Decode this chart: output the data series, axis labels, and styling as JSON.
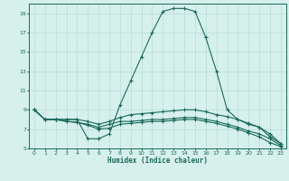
{
  "xlabel": "Humidex (Indice chaleur)",
  "bg_color": "#d6f0ec",
  "grid_color": "#b8ddd8",
  "line_color": "#1a6b5a",
  "xlim": [
    -0.5,
    23.5
  ],
  "ylim": [
    5,
    20
  ],
  "yticks": [
    5,
    7,
    9,
    11,
    13,
    15,
    17,
    19
  ],
  "xticks": [
    0,
    1,
    2,
    3,
    4,
    5,
    6,
    7,
    8,
    9,
    10,
    11,
    12,
    13,
    14,
    15,
    16,
    17,
    18,
    19,
    20,
    21,
    22,
    23
  ],
  "lines": [
    {
      "x": [
        0,
        1,
        2,
        3,
        4,
        5,
        6,
        7,
        8,
        9,
        10,
        11,
        12,
        13,
        14,
        15,
        16,
        17,
        18,
        19,
        20,
        21,
        22,
        23
      ],
      "y": [
        9,
        8,
        8,
        8,
        8,
        6,
        6,
        6.5,
        9.5,
        12,
        14.5,
        17,
        19.2,
        19.5,
        19.5,
        19.2,
        16.5,
        13,
        9,
        8.0,
        7.5,
        7.2,
        6.2,
        5.5
      ]
    },
    {
      "x": [
        0,
        1,
        2,
        3,
        4,
        5,
        6,
        7,
        8,
        9,
        10,
        11,
        12,
        13,
        14,
        15,
        16,
        17,
        18,
        19,
        20,
        21,
        22,
        23
      ],
      "y": [
        9,
        8,
        8,
        8,
        8,
        7.8,
        7.5,
        7.8,
        8.2,
        8.5,
        8.6,
        8.7,
        8.8,
        8.9,
        9.0,
        9.0,
        8.8,
        8.5,
        8.3,
        8.0,
        7.6,
        7.2,
        6.5,
        5.5
      ]
    },
    {
      "x": [
        0,
        1,
        2,
        3,
        4,
        5,
        6,
        7,
        8,
        9,
        10,
        11,
        12,
        13,
        14,
        15,
        16,
        17,
        18,
        19,
        20,
        21,
        22,
        23
      ],
      "y": [
        9,
        8,
        8,
        7.8,
        7.7,
        7.5,
        7.2,
        7.5,
        7.8,
        7.8,
        7.9,
        8.0,
        8.0,
        8.1,
        8.2,
        8.2,
        8.0,
        7.8,
        7.5,
        7.2,
        6.8,
        6.5,
        6.0,
        5.3
      ]
    },
    {
      "x": [
        0,
        1,
        2,
        3,
        4,
        5,
        6,
        7,
        8,
        9,
        10,
        11,
        12,
        13,
        14,
        15,
        16,
        17,
        18,
        19,
        20,
        21,
        22,
        23
      ],
      "y": [
        9,
        8,
        8,
        7.8,
        7.7,
        7.4,
        7.0,
        7.1,
        7.5,
        7.6,
        7.7,
        7.8,
        7.8,
        7.9,
        8.0,
        8.0,
        7.8,
        7.6,
        7.3,
        7.0,
        6.6,
        6.2,
        5.6,
        5.2
      ]
    }
  ]
}
